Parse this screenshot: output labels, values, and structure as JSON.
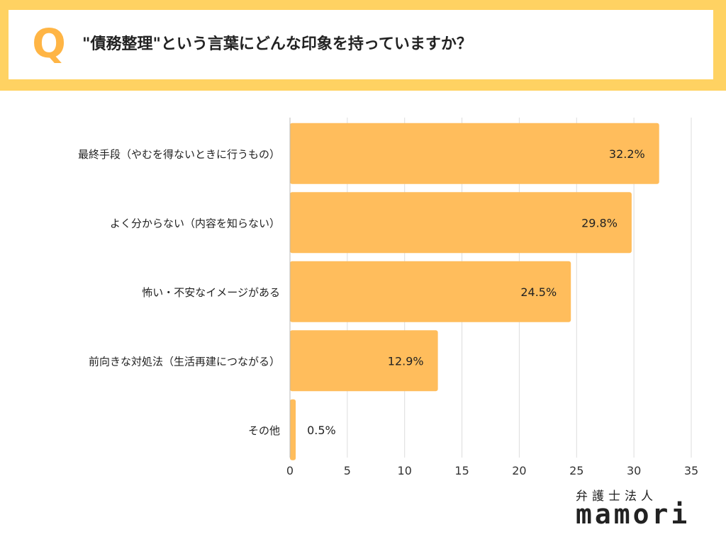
{
  "question": {
    "letter": "Q",
    "text": "\"債務整理\"という言葉にどんな印象を持っていますか？"
  },
  "chart_data": {
    "type": "bar",
    "orientation": "horizontal",
    "categories": [
      "最終手段（やむを得ないときに行うもの）",
      "よく分からない（内容を知らない）",
      "怖い・不安なイメージがある",
      "前向きな対処法（生活再建につながる）",
      "その他"
    ],
    "values": [
      32.2,
      29.8,
      24.5,
      12.9,
      0.5
    ],
    "value_labels": [
      "32.2%",
      "29.8%",
      "24.5%",
      "12.9%",
      "0.5%"
    ],
    "xticks": [
      0,
      5,
      10,
      15,
      20,
      25,
      30,
      35
    ],
    "xlim": [
      0,
      35
    ],
    "grid": "vertical",
    "bar_color": "#ffbd5c",
    "grid_color": "#dddddd"
  },
  "logo": {
    "firm": "弁護士法人",
    "name": "mamori"
  }
}
